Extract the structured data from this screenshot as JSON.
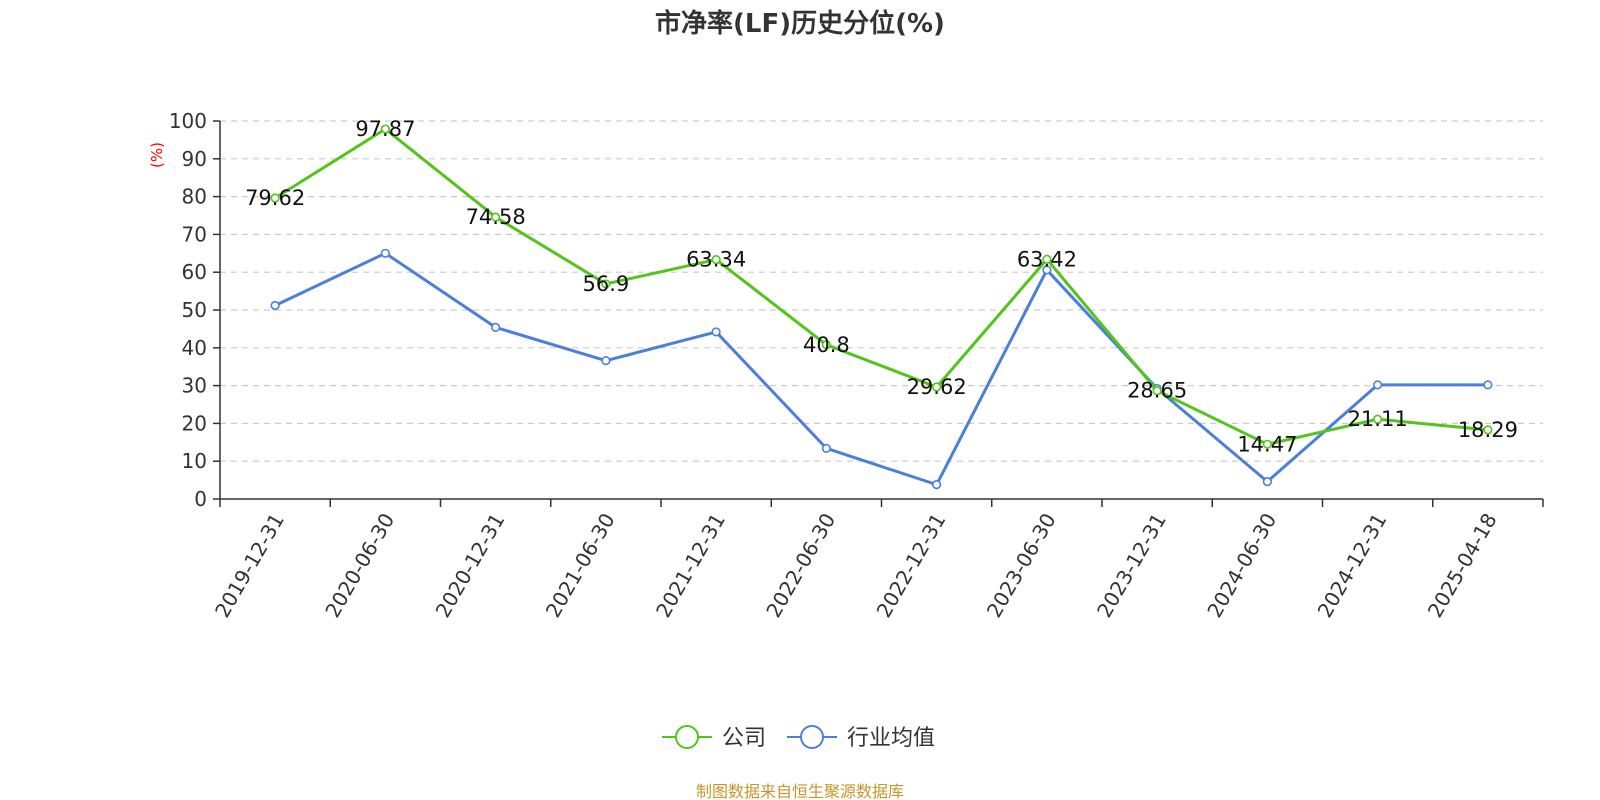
{
  "chart_data": {
    "type": "line",
    "title": "市净率(LF)历史分位(%)",
    "ylabel": "(%)",
    "ylim": [
      0,
      100
    ],
    "yticks": [
      "0",
      "10",
      "20",
      "30",
      "40",
      "50",
      "60",
      "70",
      "80",
      "90",
      "100"
    ],
    "grid": true,
    "legend_position": "bottom",
    "categories": [
      "2019-12-31",
      "2020-06-30",
      "2020-12-31",
      "2021-06-30",
      "2021-12-31",
      "2022-06-30",
      "2022-12-31",
      "2023-06-30",
      "2023-12-31",
      "2024-06-30",
      "2024-12-31",
      "2025-04-18"
    ],
    "series": [
      {
        "name": "公司",
        "color": "#52c41a",
        "values": [
          79.62,
          97.87,
          74.58,
          56.9,
          63.34,
          40.8,
          29.62,
          63.42,
          28.65,
          14.47,
          21.11,
          18.29
        ],
        "labels": [
          "79.62",
          "97.87",
          "74.58",
          "56.9",
          "63.34",
          "40.8",
          "29.62",
          "63.42",
          "28.65",
          "14.47",
          "21.11",
          "18.29"
        ]
      },
      {
        "name": "行业均值",
        "color": "#4a7fdc",
        "values": [
          51.2,
          65.0,
          45.4,
          36.6,
          44.2,
          13.4,
          3.8,
          60.6,
          29.2,
          4.6,
          30.2,
          30.2
        ]
      }
    ]
  },
  "source_note": "制图数据来自恒生聚源数据库",
  "colors": {
    "axis": "#333333",
    "grid": "#cccccc",
    "unit_label": "#ff0000",
    "source_note": "#c8962a"
  }
}
